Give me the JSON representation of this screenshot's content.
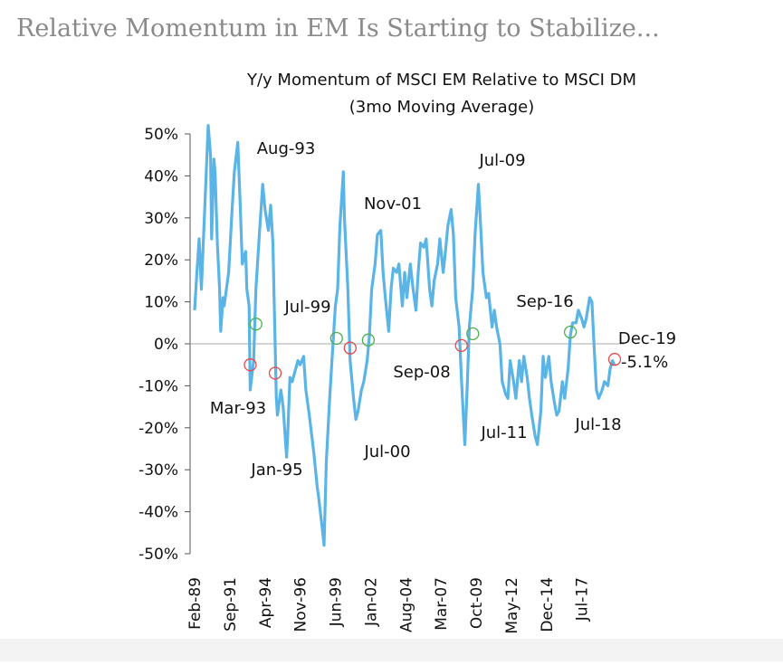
{
  "page_title": "Relative Momentum in EM Is Starting to Stabilize...",
  "chart_data": {
    "type": "line",
    "title": "Y/y Momentum of MSCI EM Relative to MSCI DM",
    "subtitle": "(3mo Moving Average)",
    "x": [
      "Feb-89",
      "Apr-89",
      "Jun-89",
      "Aug-89",
      "Sep-89",
      "Dec-89",
      "Feb-90",
      "Apr-90",
      "May-90",
      "Jul-90",
      "Aug-90",
      "Oct-90",
      "Dec-90",
      "Jan-91",
      "Mar-91",
      "Apr-91",
      "Jun-91",
      "Aug-91",
      "Nov-91",
      "Jan-92",
      "Apr-92",
      "Jun-92",
      "Aug-92",
      "Nov-92",
      "Dec-92",
      "Feb-93",
      "Mar-93",
      "Jun-93",
      "Aug-93",
      "Nov-93",
      "Feb-94",
      "Apr-94",
      "Jul-94",
      "Sep-94",
      "Nov-94",
      "Dec-94",
      "Feb-95",
      "Mar-95",
      "Jun-95",
      "Aug-95",
      "Nov-95",
      "Dec-95",
      "Feb-96",
      "Apr-96",
      "Jul-96",
      "Sep-96",
      "Nov-96",
      "Feb-97",
      "Apr-97",
      "Jul-97",
      "Nov-97",
      "Feb-98",
      "Mar-98",
      "Jun-98",
      "Aug-98",
      "Oct-98",
      "Jan-99",
      "Mar-99",
      "Jun-99",
      "Aug-99",
      "Oct-99",
      "Jan-00",
      "Feb-00",
      "May-00",
      "Jul-00",
      "Oct-00",
      "Dec-00",
      "Feb-01",
      "May-01",
      "Jul-01",
      "Oct-01",
      "Dec-01",
      "Feb-02",
      "May-02",
      "Jul-02",
      "Oct-02",
      "Dec-02",
      "Feb-03",
      "May-03",
      "Jul-03",
      "Sep-03",
      "Dec-03",
      "Feb-04",
      "May-04",
      "Jul-04",
      "Sep-04",
      "Dec-04",
      "Feb-05",
      "May-05",
      "Jul-05",
      "Sep-05",
      "Dec-05",
      "Feb-06",
      "May-06",
      "Jul-06",
      "Sep-06",
      "Dec-06",
      "Feb-07",
      "May-07",
      "Jul-07",
      "Sep-07",
      "Dec-07",
      "Feb-08",
      "Apr-08",
      "Jul-08",
      "Sep-08",
      "Dec-08",
      "Feb-09",
      "Apr-09",
      "Jul-09",
      "Sep-09",
      "Dec-09",
      "Feb-10",
      "Apr-10",
      "Jul-10",
      "Sep-10",
      "Dec-10",
      "Feb-11",
      "Apr-11",
      "Jul-11",
      "Sep-11",
      "Dec-11",
      "Feb-12",
      "Apr-12",
      "Jul-12",
      "Sep-12",
      "Dec-12",
      "Feb-13",
      "Apr-13",
      "Jul-13",
      "Sep-13",
      "Nov-13",
      "Feb-14",
      "Apr-14",
      "Jul-14",
      "Sep-14",
      "Nov-14",
      "Feb-15",
      "Apr-15",
      "Jul-15",
      "Sep-15",
      "Nov-15",
      "Feb-16",
      "Apr-16",
      "Jul-16",
      "Sep-16",
      "Nov-16",
      "Feb-17",
      "Apr-17",
      "Jul-17",
      "Sep-17",
      "Nov-17",
      "Feb-18",
      "Apr-18",
      "Jun-18",
      "Aug-18",
      "Oct-18",
      "Jan-19",
      "Mar-19",
      "Jun-19",
      "Aug-19",
      "Oct-19",
      "Dec-19"
    ],
    "series": [
      {
        "color": "#5ab4e5",
        "values": [
          8,
          17,
          25,
          13,
          20,
          39,
          52,
          45,
          25,
          44,
          41,
          24,
          13,
          3,
          11,
          9,
          13,
          17,
          32,
          41,
          48,
          34,
          19,
          22,
          13,
          9,
          -11,
          -4,
          13,
          26,
          38,
          32,
          27,
          33,
          24,
          11,
          -13,
          -17,
          -11,
          -15,
          -27,
          -22,
          -8,
          -9,
          -6,
          -4,
          -5,
          -3,
          -11,
          -17,
          -26,
          -34,
          -36,
          -43,
          -48,
          -28,
          -13,
          -4,
          9,
          13,
          28,
          41,
          30,
          13,
          -4,
          -13,
          -18,
          -16,
          -11,
          -9,
          -4,
          2,
          13,
          19,
          26,
          27,
          17,
          11,
          3,
          13,
          18,
          17,
          19,
          9,
          17,
          11,
          19,
          14,
          8,
          17,
          24,
          23,
          25,
          13,
          9,
          15,
          19,
          25,
          17,
          22,
          28,
          32,
          26,
          11,
          4,
          -8,
          -24,
          -11,
          4,
          13,
          26,
          38,
          28,
          17,
          11,
          12,
          4,
          8,
          4,
          0,
          -9,
          -12,
          -13,
          -4,
          -9,
          -13,
          -4,
          -9,
          -3,
          -8,
          -13,
          -17,
          -22,
          -24,
          -16,
          -3,
          -8,
          -3,
          -9,
          -14,
          -17,
          -16,
          -9,
          -13,
          -6,
          2,
          5,
          5,
          8,
          6,
          4,
          6,
          11,
          10,
          -1,
          -11,
          -13,
          -11,
          -9,
          -10,
          -6,
          -4,
          -5.1
        ]
      }
    ],
    "last_value_label": "-5.1%",
    "xlim": [
      "Feb-89",
      "Dec-19"
    ],
    "xticks": [
      "Feb-89",
      "Sep-91",
      "Apr-94",
      "Nov-96",
      "Jun-99",
      "Jan-02",
      "Aug-04",
      "Mar-07",
      "Oct-09",
      "May-12",
      "Dec-14",
      "Jul-17"
    ],
    "ylim": [
      -50,
      50
    ],
    "yticks": [
      {
        "value": 50,
        "label": "50%"
      },
      {
        "value": 40,
        "label": "40%"
      },
      {
        "value": 30,
        "label": "30%"
      },
      {
        "value": 20,
        "label": "20%"
      },
      {
        "value": 10,
        "label": "10%"
      },
      {
        "value": 0,
        "label": "0%"
      },
      {
        "value": -10,
        "label": "-10%"
      },
      {
        "value": -20,
        "label": "-20%"
      },
      {
        "value": -30,
        "label": "-30%"
      },
      {
        "value": -40,
        "label": "-40%"
      },
      {
        "value": -50,
        "label": "-50%"
      }
    ],
    "markers": [
      {
        "x": "Mar-93",
        "value": -5,
        "color": "#e8474c"
      },
      {
        "x": "Aug-93",
        "value": 4.7,
        "color": "#4caf50"
      },
      {
        "x": "Jan-95",
        "value": -7,
        "color": "#e8474c"
      },
      {
        "x": "Jul-99",
        "value": 1.3,
        "color": "#4caf50"
      },
      {
        "x": "Jul-00",
        "value": -1,
        "color": "#e8474c"
      },
      {
        "x": "Nov-01",
        "value": 0.9,
        "color": "#4caf50"
      },
      {
        "x": "Sep-08",
        "value": -0.4,
        "color": "#e8474c"
      },
      {
        "x": "Jul-09",
        "value": 2.4,
        "color": "#4caf50"
      },
      {
        "x": "Sep-16",
        "value": 2.8,
        "color": "#4caf50"
      },
      {
        "x": "Dec-19",
        "value": -3.7,
        "color": "#e8474c"
      }
    ],
    "annotations": [
      "Aug-93",
      "Mar-93",
      "Jan-95",
      "Jul-99",
      "Jul-00",
      "Nov-01",
      "Sep-08",
      "Jul-09",
      "Jul-11",
      "Sep-16",
      "Jul-18",
      "Dec-19"
    ]
  }
}
